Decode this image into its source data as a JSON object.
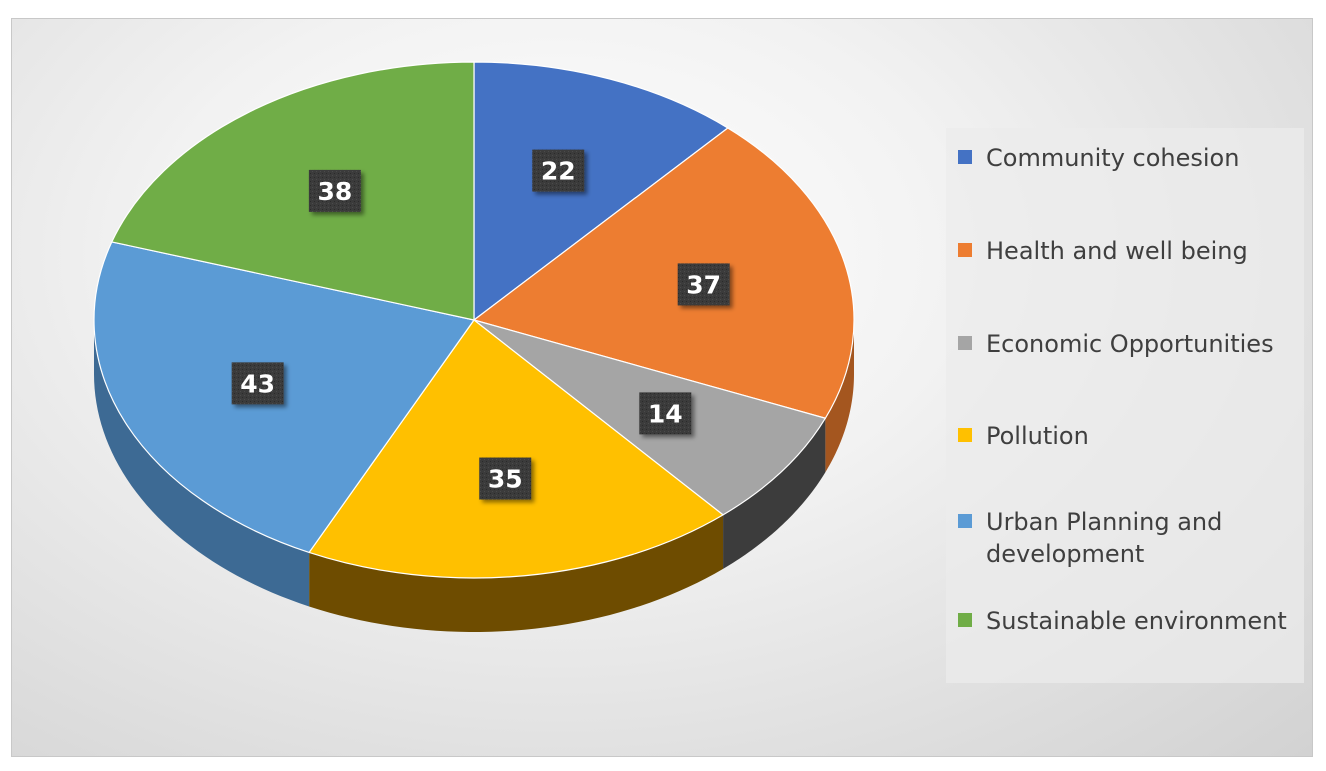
{
  "chart_data": {
    "type": "pie",
    "title": "",
    "categories": [
      "Community cohesion",
      "Health and well being",
      "Economic Opportunities",
      "Pollution",
      "Urban Planning and development",
      "Sustainable environment"
    ],
    "values": [
      22,
      37,
      14,
      35,
      43,
      38
    ],
    "data_labels": [
      "22",
      "37",
      "14",
      "35",
      "43",
      "38"
    ],
    "colors": [
      "#4472C4",
      "#ED7D31",
      "#A5A5A5",
      "#FFC000",
      "#5B9BD5",
      "#70AD47"
    ],
    "side_colors": [
      "#2e4f8a",
      "#a4561f",
      "#3c3c3c",
      "#6e4c00",
      "#3d6a94",
      "#4a7530"
    ],
    "style": "3d",
    "legend_position": "right"
  }
}
